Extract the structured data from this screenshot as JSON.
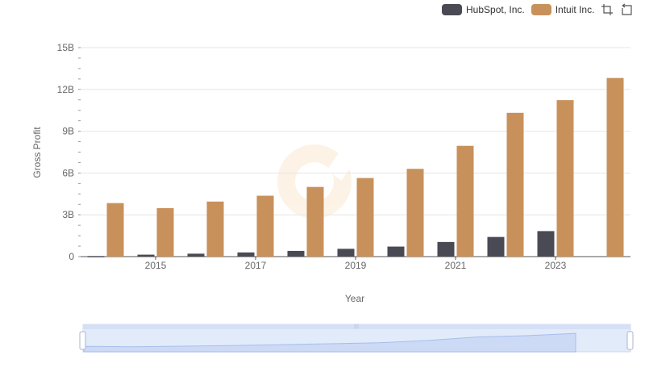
{
  "chart_data": {
    "type": "bar",
    "title": "",
    "xlabel": "Year",
    "ylabel": "Gross Profit",
    "ylim": [
      0,
      15
    ],
    "yticks": [
      "0",
      "3B",
      "6B",
      "9B",
      "12B",
      "15B"
    ],
    "categories": [
      "2014",
      "2015",
      "2016",
      "2017",
      "2018",
      "2019",
      "2020",
      "2021",
      "2022",
      "2023",
      "2024"
    ],
    "xtick_labels": [
      "2015",
      "2017",
      "2019",
      "2021",
      "2023"
    ],
    "series": [
      {
        "name": "HubSpot, Inc.",
        "color": "#4a4a55",
        "values": [
          0.04,
          0.14,
          0.21,
          0.3,
          0.41,
          0.56,
          0.72,
          1.05,
          1.41,
          1.83,
          null
        ]
      },
      {
        "name": "Intuit Inc.",
        "color": "#c8915b",
        "values": [
          3.84,
          3.48,
          3.95,
          4.37,
          5.0,
          5.64,
          6.3,
          7.95,
          10.32,
          11.23,
          12.82
        ]
      }
    ],
    "legend_position": "top-right",
    "grid": true
  },
  "legend": {
    "items": [
      {
        "label": "HubSpot, Inc.",
        "color": "#4a4a55"
      },
      {
        "label": "Intuit Inc.",
        "color": "#c8915b"
      }
    ]
  },
  "toolbar": {
    "zoom_icon": "crop-zoom-icon",
    "reset_icon": "reset-icon"
  },
  "datazoom": {
    "range": "full"
  }
}
